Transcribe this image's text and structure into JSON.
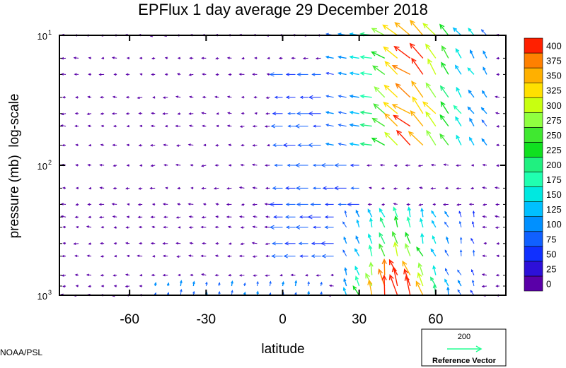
{
  "chart_data": {
    "type": "vector-field",
    "title": "EPFlux  1 day average  29 December  2018",
    "xlabel": "latitude",
    "ylabel": "pressure (mb)  log-scale",
    "x_ticks": [
      -60,
      -30,
      0,
      30,
      60
    ],
    "x_tick_labels": [
      "-60",
      "-30",
      "0",
      "30",
      "60"
    ],
    "xlim": [
      -87.5,
      87.5
    ],
    "y_scale": "log",
    "ylim": [
      1000,
      10
    ],
    "y_tick_labels": [
      {
        "value": 10,
        "base": "10",
        "exp": "1"
      },
      {
        "value": 100,
        "base": "10",
        "exp": "2"
      },
      {
        "value": 1000,
        "base": "10",
        "exp": "3"
      }
    ],
    "pressure_levels": [
      10,
      15,
      20,
      30,
      40,
      50,
      70,
      100,
      150,
      200,
      250,
      300,
      400,
      500,
      700,
      850,
      1000
    ],
    "colorbar": {
      "levels": [
        0,
        25,
        50,
        75,
        100,
        125,
        150,
        175,
        200,
        225,
        250,
        275,
        300,
        325,
        350,
        375,
        400
      ],
      "labels": [
        "0",
        "25",
        "50",
        "75",
        "100",
        "125",
        "150",
        "175",
        "200",
        "225",
        "250",
        "275",
        "300",
        "325",
        "350",
        "375",
        "400"
      ],
      "colors": [
        "#5a00a8",
        "#2d10d8",
        "#1030ff",
        "#1060ff",
        "#0090ff",
        "#00c0ff",
        "#00e8e0",
        "#20ffb0",
        "#20f080",
        "#10e020",
        "#40e830",
        "#90ff40",
        "#c8ff10",
        "#ffe000",
        "#ffb000",
        "#ff8000",
        "#ff2000"
      ]
    },
    "reference_vector": {
      "value": "200",
      "label": "Reference Vector",
      "color": "#20ff90"
    },
    "regions": [
      {
        "lat": [
          18,
          80
        ],
        "p": [
          10,
          80
        ],
        "intensity": "strong",
        "direction": "up-left"
      },
      {
        "lat": [
          25,
          75
        ],
        "p": [
          250,
          1000
        ],
        "intensity": "strong",
        "direction": "up-left"
      }
    ]
  },
  "credit": "NOAA/PSL"
}
